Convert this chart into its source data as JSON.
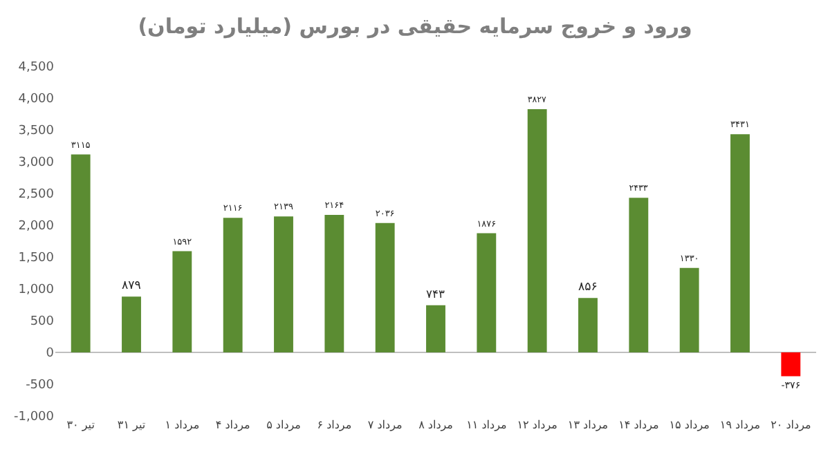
{
  "chart_data": {
    "type": "bar",
    "title": "ورود و خروج سرمایه حقیقی در بورس (میلیارد تومان)",
    "categories": [
      "۳۰ تیر",
      "۳۱ تیر",
      "۱ مرداد",
      "۴ مرداد",
      "۵ مرداد",
      "۶ مرداد",
      "۷ مرداد",
      "۸ مرداد",
      "۱۱ مرداد",
      "۱۲ مرداد",
      "۱۳ مرداد",
      "۱۴ مرداد",
      "۱۵ مرداد",
      "۱۹ مرداد",
      "۲۰ مرداد"
    ],
    "values": [
      3115,
      879,
      1592,
      2116,
      2139,
      2164,
      2036,
      743,
      1876,
      3827,
      856,
      2433,
      1330,
      3431,
      -376
    ],
    "value_labels": [
      "۳۱۱۵",
      "۸۷۹",
      "۱۵۹۲",
      "۲۱۱۶",
      "۲۱۳۹",
      "۲۱۶۴",
      "۲۰۳۶",
      "۷۴۳",
      "۱۸۷۶",
      "۳۸۲۷",
      "۸۵۶",
      "۲۴۳۳",
      "۱۳۳۰",
      "۳۴۳۱",
      "-۳۷۶"
    ],
    "colors": [
      "#5b8c32",
      "#5b8c32",
      "#5b8c32",
      "#5b8c32",
      "#5b8c32",
      "#5b8c32",
      "#5b8c32",
      "#5b8c32",
      "#5b8c32",
      "#5b8c32",
      "#5b8c32",
      "#5b8c32",
      "#5b8c32",
      "#5b8c32",
      "#ff0000"
    ],
    "ylim": [
      -1000,
      4500
    ],
    "yticks": [
      {
        "value": -1000,
        "label": "-1,000"
      },
      -500,
      0,
      500,
      {
        "value": 1000,
        "label": "1,000"
      },
      {
        "value": 1500,
        "label": "1,500"
      },
      {
        "value": 2000,
        "label": "2,000"
      },
      {
        "value": 2500,
        "label": "2,500"
      },
      {
        "value": 3000,
        "label": "3,000"
      },
      {
        "value": 3500,
        "label": "3,500"
      },
      {
        "value": 4000,
        "label": "4,000"
      },
      {
        "value": 4500,
        "label": "4,500"
      }
    ],
    "ref_lines": [
      {
        "axis": "y",
        "value": 0,
        "color": "#bfbfbf"
      }
    ],
    "grid": false
  }
}
